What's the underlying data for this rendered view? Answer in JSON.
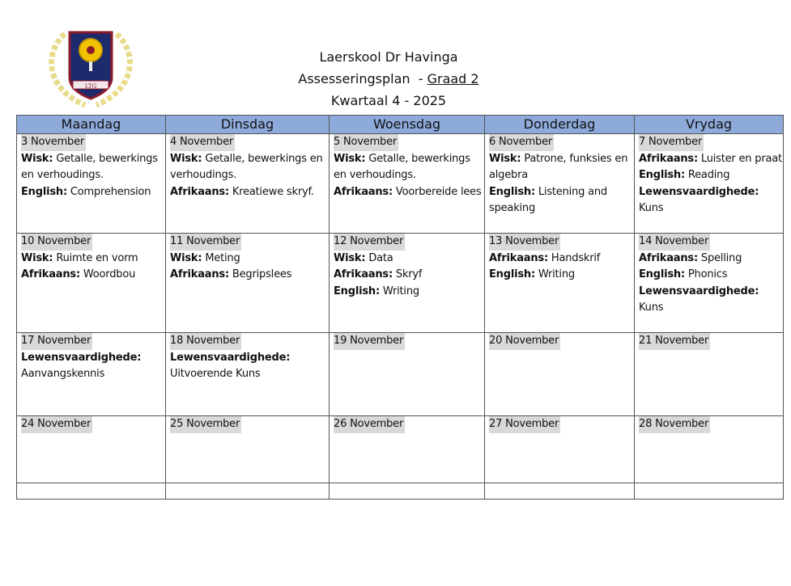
{
  "header": {
    "school": "Laerskool Dr Havinga",
    "plan_prefix": "Assesseringsplan  - ",
    "grade": "Graad 2",
    "term": "Kwartaal 4 - 2025",
    "logo_text": "LTG"
  },
  "colors": {
    "header_fill": "#8eaadb",
    "date_highlight": "#d9d9d9",
    "logo_gold": "#e8dc8c",
    "logo_navy": "#1d2a6b",
    "logo_red": "#8b1a2b"
  },
  "table": {
    "columns": [
      "Maandag",
      "Dinsdag",
      "Woensdag",
      "Donderdag",
      "Vrydag"
    ],
    "rows": [
      [
        {
          "date": "3 November",
          "lines": [
            {
              "label": "Wisk:",
              "text": " Getalle, bewerkings en verhoudings."
            },
            {
              "label": "English:",
              "text": " Comprehension"
            }
          ]
        },
        {
          "date": "4 November",
          "lines": [
            {
              "label": "Wisk:",
              "text": " Getalle, bewerkings en verhoudings."
            },
            {
              "label": "Afrikaans:",
              "text": " Kreatiewe skryf."
            }
          ]
        },
        {
          "date": "5 November",
          "lines": [
            {
              "label": "Wisk:",
              "text": " Getalle, bewerkings en verhoudings."
            },
            {
              "label": "Afrikaans:",
              "text": " Voorbereide lees"
            }
          ]
        },
        {
          "date": "6 November",
          "lines": [
            {
              "label": "Wisk:",
              "text": " Patrone, funksies en algebra"
            },
            {
              "label": "English:",
              "text": " Listening and speaking"
            }
          ]
        },
        {
          "date": "7 November",
          "lines": [
            {
              "label": "Afrikaans:",
              "text": " Luister en praat"
            },
            {
              "label": "English:",
              "text": " Reading"
            },
            {
              "label": "Lewensvaardighede:",
              "text": " Kuns"
            }
          ]
        }
      ],
      [
        {
          "date": "10 November",
          "lines": [
            {
              "label": "Wisk:",
              "text": " Ruimte en vorm"
            },
            {
              "label": "Afrikaans:",
              "text": " Woordbou"
            }
          ]
        },
        {
          "date": "11 November",
          "lines": [
            {
              "label": "Wisk:",
              "text": " Meting"
            },
            {
              "label": "Afrikaans:",
              "text": " Begripslees"
            }
          ]
        },
        {
          "date": "12 November",
          "lines": [
            {
              "label": "Wisk:",
              "text": " Data"
            },
            {
              "label": "Afrikaans:",
              "text": " Skryf"
            },
            {
              "label": "English:",
              "text": " Writing"
            }
          ]
        },
        {
          "date": "13 November",
          "lines": [
            {
              "label": "Afrikaans:",
              "text": " Handskrif"
            },
            {
              "label": "English:",
              "text": " Writing"
            }
          ]
        },
        {
          "date": "14 November",
          "lines": [
            {
              "label": "Afrikaans:",
              "text": " Spelling"
            },
            {
              "label": "English:",
              "text": " Phonics"
            },
            {
              "label": "Lewensvaardighede:",
              "text": " Kuns"
            }
          ]
        }
      ],
      [
        {
          "date": "17 November",
          "lines": [
            {
              "label": "Lewensvaardighede:",
              "text": " Aanvangskennis"
            }
          ]
        },
        {
          "date": "18 November",
          "lines": [
            {
              "label": "Lewensvaardighede:",
              "text": " Uitvoerende Kuns"
            }
          ]
        },
        {
          "date": "19 November",
          "lines": []
        },
        {
          "date": "20 November",
          "lines": []
        },
        {
          "date": "21 November",
          "lines": []
        }
      ],
      [
        {
          "date": "24 November",
          "lines": []
        },
        {
          "date": "25 November",
          "lines": []
        },
        {
          "date": "26 November",
          "lines": []
        },
        {
          "date": "27 November",
          "lines": []
        },
        {
          "date": "28 November",
          "lines": []
        }
      ],
      [
        {
          "date": "",
          "lines": []
        },
        {
          "date": "",
          "lines": []
        },
        {
          "date": "",
          "lines": []
        },
        {
          "date": "",
          "lines": []
        },
        {
          "date": "",
          "lines": []
        }
      ]
    ]
  }
}
